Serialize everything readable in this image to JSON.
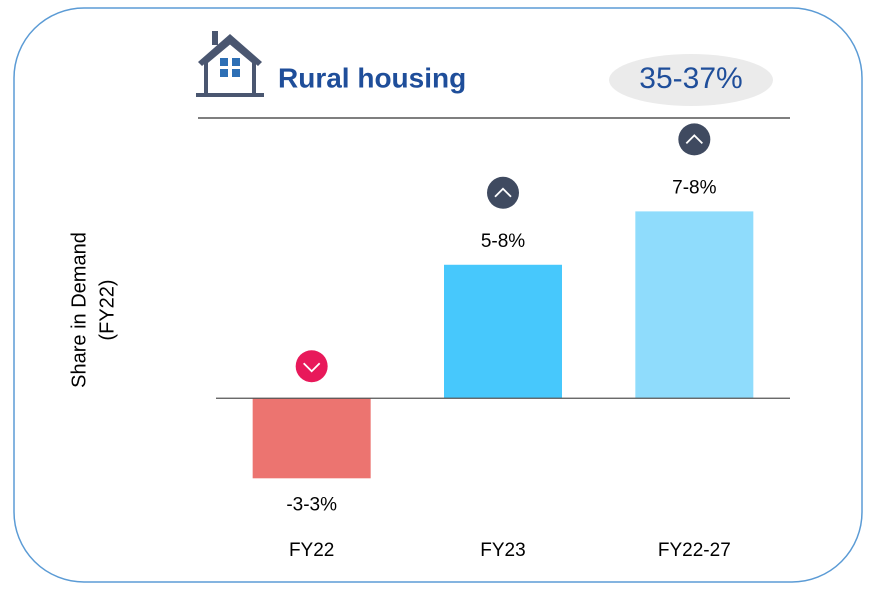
{
  "chart_data": {
    "type": "bar",
    "title": "Rural housing",
    "badge": "35-37%",
    "ylabel_lines": [
      "Share in Demand",
      "(FY22)"
    ],
    "categories": [
      "FY22",
      "FY23",
      "FY22-27"
    ],
    "values": [
      -3,
      5,
      7
    ],
    "value_labels": [
      "-3-3%",
      "5-8%",
      "7-8%"
    ],
    "colors": [
      "#ec7470",
      "#47c8fc",
      "#8fdcfc"
    ],
    "ylim": [
      -4,
      9
    ]
  }
}
